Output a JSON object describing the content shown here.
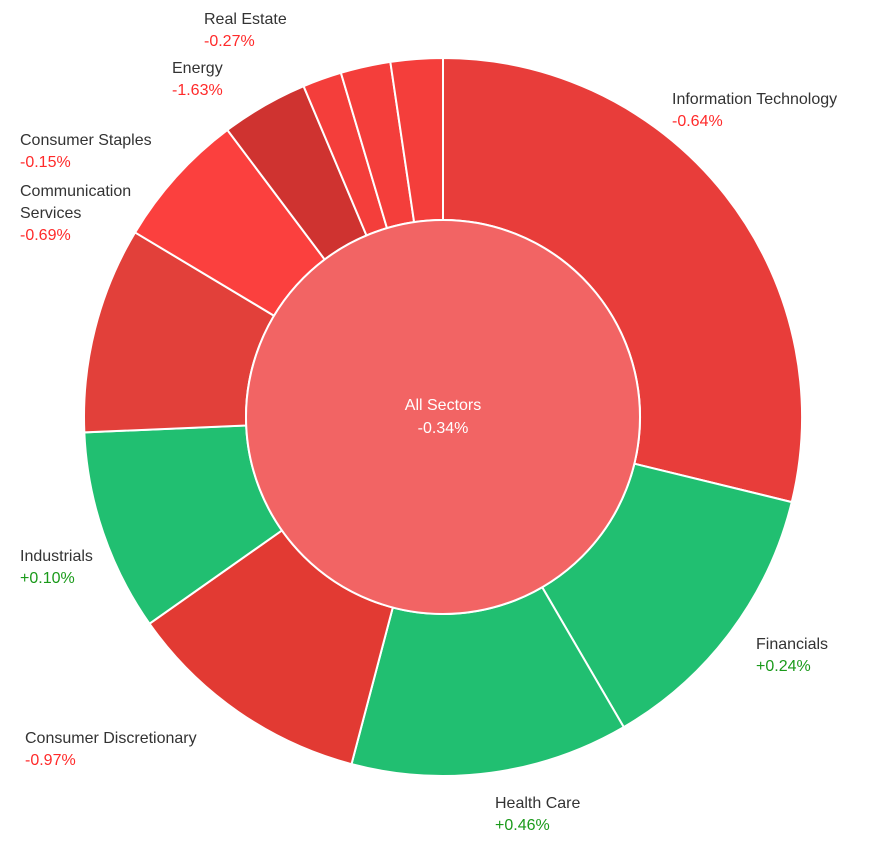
{
  "chart_data": {
    "type": "pie",
    "center": {
      "label": "All Sectors",
      "value": "-0.34%",
      "color": "#f26464"
    },
    "colors": {
      "positive_text": "#1a9a1a",
      "negative_text": "#ff2a2a"
    },
    "series": [
      {
        "name": "Information Technology",
        "change": "-0.64%",
        "color": "#e83d3a",
        "share": 0.295
      },
      {
        "name": "Financials",
        "change": "+0.24%",
        "color": "#21bf71",
        "share": 0.131
      },
      {
        "name": "Health Care",
        "change": "+0.46%",
        "color": "#21bf71",
        "share": 0.128
      },
      {
        "name": "Consumer Discretionary",
        "change": "-0.97%",
        "color": "#e23a33",
        "share": 0.114
      },
      {
        "name": "Industrials",
        "change": "+0.10%",
        "color": "#21bf71",
        "share": 0.093
      },
      {
        "name": "",
        "change": "",
        "color": "#e2403a",
        "share": 0.095
      },
      {
        "name": "Communication Services",
        "change": "-0.69%",
        "color": "#fb403e",
        "share": 0.063
      },
      {
        "name": "Consumer Staples",
        "change": "-0.15%",
        "color": "#cf3330",
        "share": 0.04
      },
      {
        "name": "Energy",
        "change": "-1.63%",
        "color": "#f43e3b",
        "share": 0.018
      },
      {
        "name": "",
        "change": "",
        "color": "#f43e3b",
        "share": 0.023
      },
      {
        "name": "Real Estate",
        "change": "-0.27%",
        "color": "#f43e3b",
        "share": 0.024
      }
    ]
  }
}
